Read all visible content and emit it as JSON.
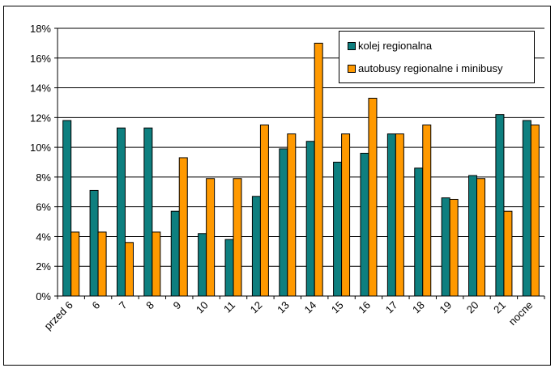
{
  "chart_data": {
    "type": "bar",
    "title": "",
    "xlabel": "",
    "ylabel": "",
    "categories": [
      "przed 6",
      "6",
      "7",
      "8",
      "9",
      "10",
      "11",
      "12",
      "13",
      "14",
      "15",
      "16",
      "17",
      "18",
      "19",
      "20",
      "21",
      "nocne"
    ],
    "series": [
      {
        "name": "kolej regionalna",
        "color": "#0e7f7f",
        "values": [
          11.8,
          7.1,
          11.3,
          11.3,
          5.7,
          4.2,
          3.8,
          6.7,
          9.9,
          10.4,
          9.0,
          9.6,
          10.9,
          8.6,
          6.6,
          8.1,
          12.2,
          11.8
        ]
      },
      {
        "name": "autobusy regionalne i minibusy",
        "color": "#ff9900",
        "values": [
          4.3,
          4.3,
          3.6,
          4.3,
          9.3,
          7.9,
          7.9,
          11.5,
          10.9,
          17.0,
          10.9,
          13.3,
          10.9,
          11.5,
          6.5,
          7.9,
          5.7,
          11.5
        ]
      }
    ],
    "ylim": [
      0,
      18
    ],
    "yticks": [
      "0%",
      "2%",
      "4%",
      "6%",
      "8%",
      "10%",
      "12%",
      "14%",
      "16%",
      "18%"
    ],
    "grid": true,
    "legend_position": "top-right"
  }
}
